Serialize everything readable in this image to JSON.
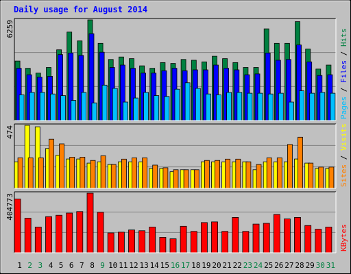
{
  "chart_data": {
    "type": "bar",
    "title": "Daily usage for August 2014",
    "categories": [
      "1",
      "2",
      "3",
      "4",
      "5",
      "6",
      "7",
      "8",
      "9",
      "10",
      "11",
      "12",
      "13",
      "14",
      "15",
      "16",
      "17",
      "18",
      "19",
      "20",
      "21",
      "22",
      "23",
      "24",
      "25",
      "26",
      "27",
      "28",
      "29",
      "30",
      "31"
    ],
    "weekend_days": [
      "2",
      "3",
      "9",
      "16",
      "17",
      "23",
      "24",
      "30",
      "31"
    ],
    "colors": {
      "hits": "#008040",
      "files": "#0000ff",
      "pages": "#00c0ff",
      "visits": "#ffff00",
      "sites": "#ff8000",
      "kbytes": "#ff0000",
      "title": "#0000ff",
      "weekday_label": "#000000",
      "weekend_label": "#008040"
    },
    "panels": [
      {
        "id": "top",
        "max_label": "6259",
        "ymax": 6259,
        "axis_labels": [
          {
            "text": "Pages",
            "color": "#00c0ff"
          },
          {
            "text": " / ",
            "color": "#000000"
          },
          {
            "text": "Files",
            "color": "#0000ff"
          },
          {
            "text": " / ",
            "color": "#000000"
          },
          {
            "text": "Hits",
            "color": "#008040"
          }
        ],
        "series": [
          {
            "name": "Hits",
            "color": "#008040",
            "values": [
              3700,
              3250,
              2950,
              3300,
              4400,
              5500,
              4950,
              6259,
              4800,
              3800,
              3950,
              3850,
              3400,
              3250,
              3600,
              3550,
              3800,
              3750,
              3650,
              4000,
              3850,
              3600,
              3300,
              3300,
              5700,
              4800,
              4800,
              6150,
              4450,
              3200,
              3450
            ]
          },
          {
            "name": "Files",
            "color": "#0000ff",
            "values": [
              3250,
              2850,
              2700,
              2750,
              4100,
              4200,
              4050,
              5400,
              4250,
              3300,
              3450,
              3250,
              2950,
              2950,
              3100,
              3250,
              3100,
              3150,
              3150,
              3450,
              3250,
              3150,
              2850,
              2900,
              4200,
              3750,
              3800,
              4700,
              3650,
              2800,
              2850
            ]
          },
          {
            "name": "Pages",
            "color": "#00c0ff",
            "values": [
              1600,
              1750,
              1750,
              1650,
              1550,
              1250,
              1750,
              1100,
              2200,
              2000,
              1150,
              1400,
              1750,
              1550,
              1500,
              1950,
              2350,
              2000,
              1650,
              1600,
              1750,
              1750,
              1700,
              1700,
              1650,
              1700,
              1150,
              1850,
              1700,
              1750,
              1700
            ]
          }
        ]
      },
      {
        "id": "mid",
        "max_label": "474",
        "ymax": 474,
        "axis_labels": [
          {
            "text": "Sites",
            "color": "#ff8000"
          },
          {
            "text": " / ",
            "color": "#000000"
          },
          {
            "text": "Visits",
            "color": "#ffff00"
          }
        ],
        "series": [
          {
            "name": "Visits",
            "color": "#ffff00",
            "values": [
              200,
              474,
              463,
              300,
              250,
              221,
              221,
              190,
              200,
              180,
              200,
              200,
              200,
              150,
              150,
              125,
              140,
              140,
              200,
              200,
              200,
              200,
              200,
              140,
              200,
              200,
              200,
              221,
              190,
              150,
              150
            ]
          },
          {
            "name": "Sites",
            "color": "#ff8000",
            "values": [
              230,
              230,
              230,
              370,
              335,
              235,
              235,
              210,
              245,
              180,
              220,
              230,
              230,
              175,
              155,
              140,
              140,
              140,
              210,
              210,
              220,
              220,
              200,
              180,
              230,
              230,
              330,
              385,
              190,
              160,
              160
            ]
          }
        ]
      },
      {
        "id": "bot",
        "max_label": "404773",
        "ymax": 404773,
        "axis_labels": [
          {
            "text": "KBytes",
            "color": "#ff0000"
          }
        ],
        "series": [
          {
            "name": "KBytes",
            "color": "#ff0000",
            "values": [
              365000,
              235000,
              175000,
              245000,
              255000,
              270000,
              280000,
              404773,
              275000,
              135000,
              140000,
              155000,
              150000,
              175000,
              105000,
              95000,
              180000,
              145000,
              205000,
              210000,
              145000,
              240000,
              145000,
              195000,
              200000,
              260000,
              230000,
              240000,
              185000,
              160000,
              175000
            ]
          }
        ]
      }
    ]
  }
}
